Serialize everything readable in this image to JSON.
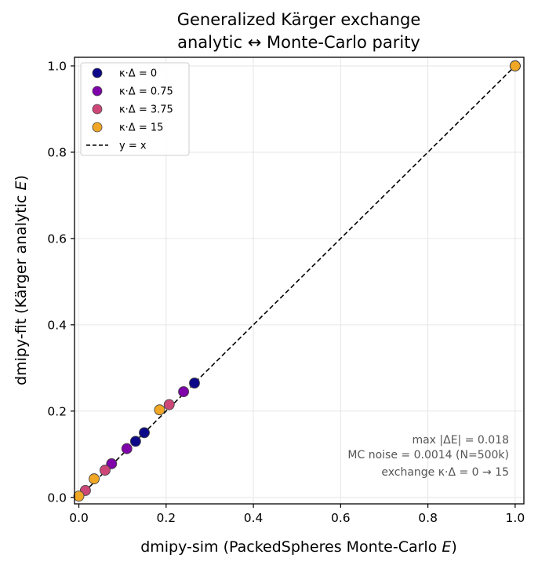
{
  "chart_data": {
    "type": "scatter",
    "title_lines": [
      "Generalized Kärger exchange",
      "analytic ↔ Monte-Carlo parity"
    ],
    "xlabel_text": "dmipy-sim  (PackedSpheres Monte-Carlo ",
    "xlabel_var": "E",
    "xlabel_close": ")",
    "ylabel_text": "dmipy-fit  (Kärger analytic ",
    "ylabel_var": "E",
    "ylabel_close": ")",
    "xlim": [
      -0.01,
      1.02
    ],
    "ylim": [
      -0.015,
      1.02
    ],
    "xticks": [
      0.0,
      0.2,
      0.4,
      0.6,
      0.8,
      1.0
    ],
    "yticks": [
      0.0,
      0.2,
      0.4,
      0.6,
      0.8,
      1.0
    ],
    "xtick_labels": [
      "0.0",
      "0.2",
      "0.4",
      "0.6",
      "0.8",
      "1.0"
    ],
    "ytick_labels": [
      "0.0",
      "0.2",
      "0.4",
      "0.6",
      "0.8",
      "1.0"
    ],
    "grid": true,
    "legend_position": "top-left",
    "series": [
      {
        "name": "κ·Δ = 0",
        "color": "#0d0887",
        "points": [
          [
            1.0,
            1.0
          ],
          [
            0.265,
            0.265
          ],
          [
            0.15,
            0.15
          ],
          [
            0.13,
            0.13
          ]
        ]
      },
      {
        "name": "κ·Δ = 0.75",
        "color": "#7e03a8",
        "points": [
          [
            1.0,
            1.0
          ],
          [
            0.24,
            0.245
          ],
          [
            0.11,
            0.113
          ],
          [
            0.075,
            0.078
          ]
        ]
      },
      {
        "name": "κ·Δ = 3.75",
        "color": "#cc4778",
        "points": [
          [
            1.0,
            1.0
          ],
          [
            0.207,
            0.215
          ],
          [
            0.06,
            0.063
          ],
          [
            0.015,
            0.016
          ]
        ]
      },
      {
        "name": "κ·Δ = 15",
        "color": "#f0a725",
        "points": [
          [
            1.0,
            1.0
          ],
          [
            0.185,
            0.203
          ],
          [
            0.035,
            0.043
          ],
          [
            0.0,
            0.003
          ]
        ]
      }
    ],
    "reference_line": {
      "name": "y = x",
      "from": [
        0.0,
        0.0
      ],
      "to": [
        1.0,
        1.0
      ],
      "color": "#000000",
      "style": "dashed"
    },
    "annotations": [
      "max |ΔE| = 0.018",
      "MC noise = 0.0014 (N=500k)",
      "exchange κ·Δ = 0 → 15"
    ]
  }
}
